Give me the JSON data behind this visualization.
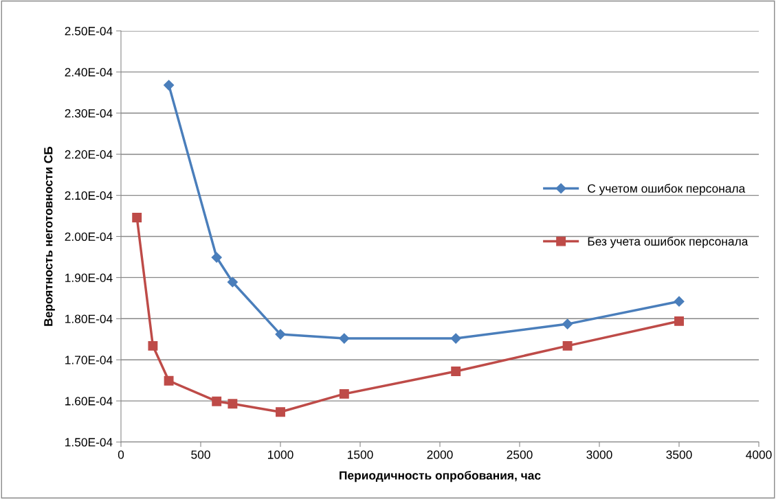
{
  "chart_data": {
    "type": "line",
    "xlabel": "Периодичность опробования, час",
    "ylabel": "Вероятность неготовности СБ",
    "xlim": [
      0,
      4000
    ],
    "xticks": [
      0,
      500,
      1000,
      1500,
      2000,
      2500,
      3000,
      3500,
      4000
    ],
    "ylim": [
      0.00015,
      0.00025
    ],
    "yticks": [
      {
        "value": 0.00015,
        "label": "1.50E-04"
      },
      {
        "value": 0.00016,
        "label": "1.60E-04"
      },
      {
        "value": 0.00017,
        "label": "1.70E-04"
      },
      {
        "value": 0.00018,
        "label": "1.80E-04"
      },
      {
        "value": 0.00019,
        "label": "1.90E-04"
      },
      {
        "value": 0.0002,
        "label": "2.00E-04"
      },
      {
        "value": 0.00021,
        "label": "2.10E-04"
      },
      {
        "value": 0.00022,
        "label": "2.20E-04"
      },
      {
        "value": 0.00023,
        "label": "2.30E-04"
      },
      {
        "value": 0.00024,
        "label": "2.40E-04"
      },
      {
        "value": 0.00025,
        "label": "2.50E-04"
      }
    ],
    "grid": "y",
    "legend": "right",
    "line_style": "solid",
    "series": [
      {
        "name": "С учетом ошибок персонала",
        "color": "#4a7ebb",
        "marker": "diamond",
        "x": [
          300,
          600,
          700,
          1000,
          1400,
          2100,
          2800,
          3500
        ],
        "values": [
          0.0002368,
          0.0001949,
          0.0001889,
          0.0001762,
          0.0001752,
          0.0001752,
          0.0001787,
          0.0001842
        ]
      },
      {
        "name": "Без учета ошибок персонала",
        "color": "#be4b48",
        "marker": "square",
        "x": [
          100,
          200,
          300,
          600,
          700,
          1000,
          1400,
          2100,
          2800,
          3500
        ],
        "values": [
          0.0002046,
          0.0001734,
          0.0001649,
          0.0001599,
          0.0001593,
          0.0001573,
          0.0001617,
          0.0001672,
          0.0001734,
          0.0001794
        ]
      }
    ]
  }
}
